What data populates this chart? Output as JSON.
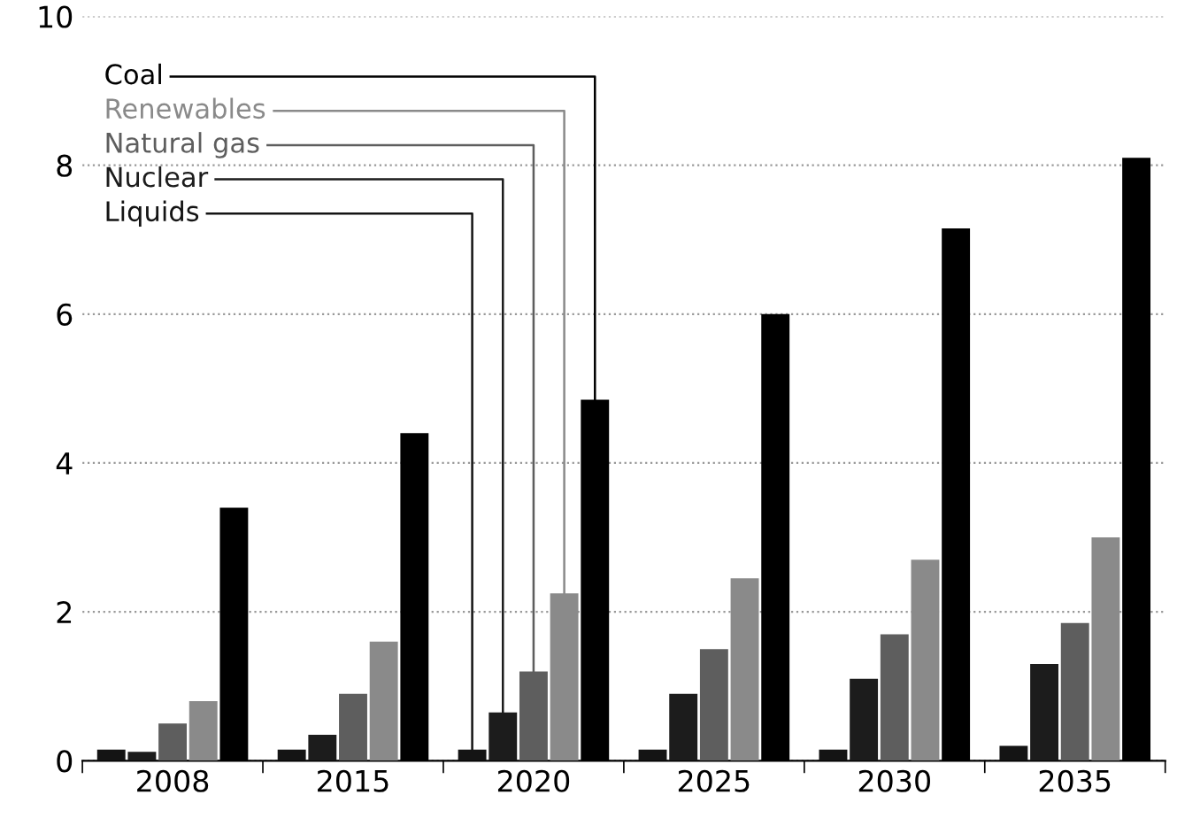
{
  "chart_data": {
    "type": "bar",
    "categories": [
      "2008",
      "2015",
      "2020",
      "2025",
      "2030",
      "2035"
    ],
    "series": [
      {
        "name": "Liquids",
        "color": "#141414",
        "values": [
          0.15,
          0.15,
          0.15,
          0.15,
          0.15,
          0.2
        ]
      },
      {
        "name": "Nuclear",
        "color": "#1c1c1c",
        "values": [
          0.12,
          0.35,
          0.65,
          0.9,
          1.1,
          1.3
        ]
      },
      {
        "name": "Natural gas",
        "color": "#5e5e5e",
        "values": [
          0.5,
          0.9,
          1.2,
          1.5,
          1.7,
          1.85
        ]
      },
      {
        "name": "Renewables",
        "color": "#8a8a8a",
        "values": [
          0.8,
          1.6,
          2.25,
          2.45,
          2.7,
          3.0
        ]
      },
      {
        "name": "Coal",
        "color": "#000000",
        "values": [
          3.4,
          4.4,
          4.85,
          6.0,
          7.15,
          8.1
        ]
      }
    ],
    "ylim": [
      0,
      10
    ],
    "yticks": [
      0,
      2,
      4,
      6,
      8,
      10
    ],
    "grid": "y",
    "legend": false
  }
}
